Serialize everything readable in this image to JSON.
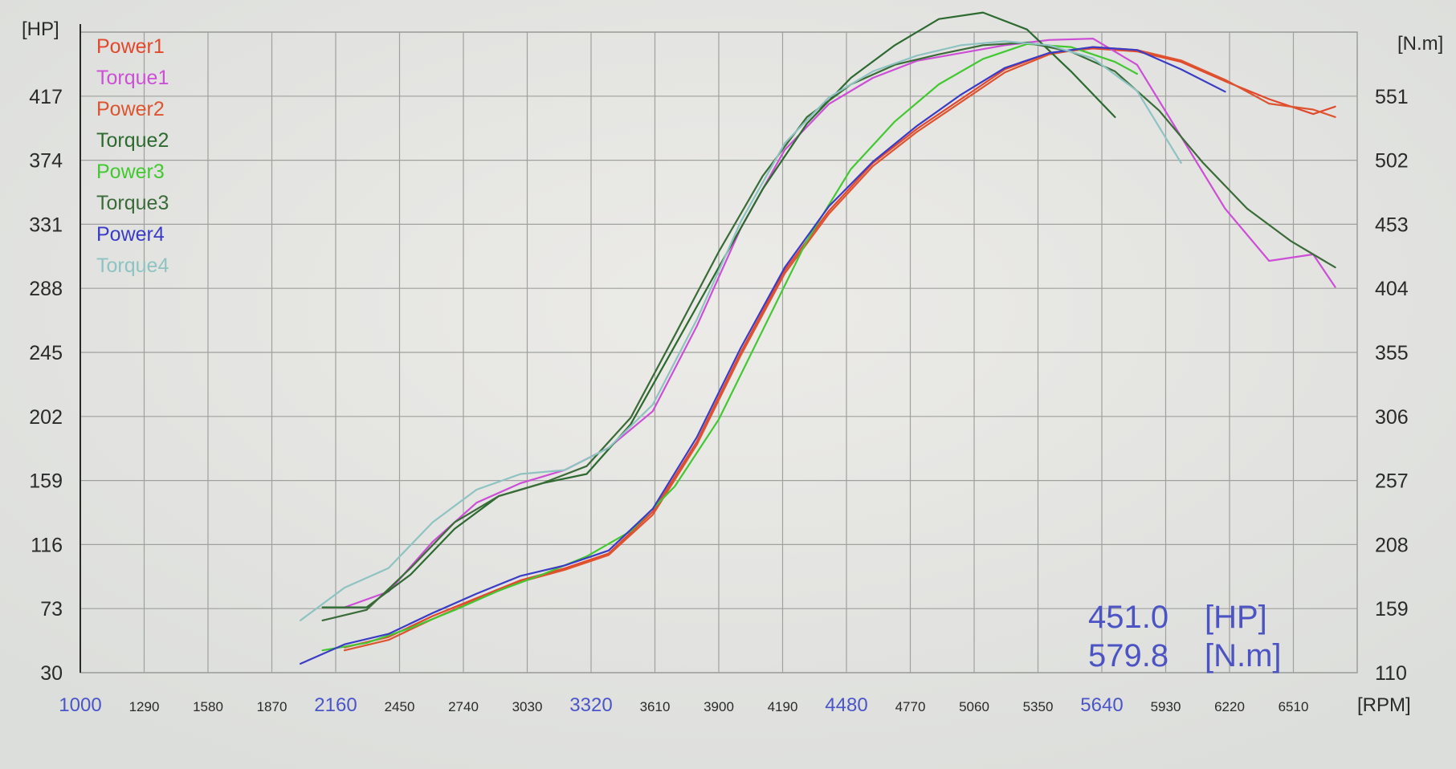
{
  "chart_data": {
    "type": "line",
    "left_axis": {
      "unit": "[HP]",
      "ticks": [
        30,
        73,
        116,
        159,
        202,
        245,
        288,
        331,
        374,
        417
      ],
      "range": [
        30,
        460
      ]
    },
    "right_axis": {
      "unit": "[N.m]",
      "ticks": [
        110,
        159,
        208,
        257,
        306,
        355,
        404,
        453,
        502,
        551
      ],
      "range": [
        110,
        600
      ]
    },
    "x_axis": {
      "unit": "[RPM]",
      "ticks": [
        "1000",
        "1290",
        "1580",
        "1870",
        "2160",
        "2450",
        "2740",
        "3030",
        "3320",
        "3610",
        "3900",
        "4190",
        "4480",
        "4770",
        "5060",
        "5350",
        "5640",
        "5930",
        "6220",
        "6510"
      ],
      "highlighted_ticks": [
        "1000",
        "2160",
        "3320",
        "4480",
        "5640"
      ],
      "range": [
        1000,
        6800
      ]
    },
    "grid": true,
    "legend_position": "top-left",
    "readout": {
      "power": "451.0",
      "power_unit": "[HP]",
      "torque": "579.8",
      "torque_unit": "[N.m]"
    },
    "series": [
      {
        "name": "Power1",
        "axis": "HP",
        "color": "#e2482c",
        "x": [
          2200,
          2400,
          2600,
          2800,
          3000,
          3200,
          3400,
          3600,
          3800,
          4000,
          4200,
          4400,
          4600,
          4800,
          5000,
          5200,
          5400,
          5600,
          5800,
          6000,
          6200,
          6400,
          6600,
          6700
        ],
        "y": [
          47,
          54,
          68,
          80,
          92,
          100,
          110,
          138,
          185,
          245,
          300,
          340,
          372,
          395,
          415,
          435,
          446,
          449,
          447,
          440,
          427,
          415,
          405,
          410
        ]
      },
      {
        "name": "Torque1",
        "axis": "N.m",
        "color": "#cc4fd6",
        "x": [
          2200,
          2400,
          2600,
          2800,
          3000,
          3200,
          3400,
          3600,
          3800,
          4000,
          4200,
          4400,
          4600,
          4800,
          5000,
          5200,
          5400,
          5600,
          5800,
          6000,
          6200,
          6400,
          6600,
          6700
        ],
        "y": [
          160,
          172,
          210,
          240,
          255,
          265,
          282,
          310,
          375,
          450,
          510,
          545,
          565,
          578,
          584,
          590,
          594,
          595,
          575,
          520,
          465,
          425,
          430,
          405
        ]
      },
      {
        "name": "Power2",
        "axis": "HP",
        "color": "#dd5530",
        "x": [
          2200,
          2400,
          2600,
          2800,
          3000,
          3200,
          3400,
          3600,
          3800,
          4000,
          4200,
          4400,
          4600,
          4800,
          5000,
          5200,
          5400,
          5600,
          5800,
          6000,
          6200,
          6400,
          6600,
          6700
        ],
        "y": [
          45,
          52,
          66,
          79,
          91,
          99,
          109,
          136,
          183,
          243,
          298,
          338,
          370,
          393,
          413,
          433,
          445,
          450,
          448,
          441,
          428,
          412,
          408,
          403
        ]
      },
      {
        "name": "Torque2",
        "axis": "N.m",
        "color": "#2c6a30",
        "x": [
          2100,
          2300,
          2500,
          2700,
          2900,
          3100,
          3300,
          3500,
          3700,
          3900,
          4100,
          4300,
          4500,
          4700,
          4900,
          5100,
          5300,
          5500,
          5700
        ],
        "y": [
          160,
          160,
          185,
          220,
          245,
          255,
          262,
          300,
          360,
          420,
          480,
          530,
          565,
          590,
          610,
          615,
          602,
          570,
          535
        ]
      },
      {
        "name": "Power3",
        "axis": "HP",
        "color": "#43c832",
        "x": [
          2100,
          2300,
          2500,
          2700,
          2900,
          3100,
          3300,
          3500,
          3700,
          3900,
          4100,
          4300,
          4500,
          4700,
          4900,
          5100,
          5300,
          5500,
          5700,
          5800
        ],
        "y": [
          45,
          50,
          60,
          72,
          85,
          96,
          108,
          125,
          155,
          200,
          260,
          320,
          368,
          400,
          425,
          442,
          452,
          450,
          440,
          432
        ]
      },
      {
        "name": "Torque3",
        "axis": "N.m",
        "color": "#3a6b38",
        "x": [
          2100,
          2300,
          2500,
          2700,
          2900,
          3100,
          3300,
          3500,
          3700,
          3900,
          4100,
          4300,
          4500,
          4700,
          4900,
          5100,
          5300,
          5500,
          5700,
          5900,
          6100,
          6300,
          6500,
          6700
        ],
        "y": [
          150,
          158,
          190,
          225,
          245,
          255,
          268,
          305,
          368,
          432,
          490,
          535,
          560,
          575,
          583,
          590,
          592,
          585,
          570,
          540,
          500,
          465,
          440,
          420
        ]
      },
      {
        "name": "Power4",
        "axis": "HP",
        "color": "#3a3cc6",
        "x": [
          2000,
          2200,
          2400,
          2600,
          2800,
          3000,
          3200,
          3400,
          3600,
          3800,
          4000,
          4200,
          4400,
          4600,
          4800,
          5000,
          5200,
          5400,
          5600,
          5800,
          6000,
          6200
        ],
        "y": [
          36,
          49,
          56,
          70,
          83,
          95,
          102,
          112,
          140,
          188,
          248,
          302,
          343,
          373,
          397,
          418,
          436,
          446,
          450,
          448,
          435,
          420
        ]
      },
      {
        "name": "Torque4",
        "axis": "N.m",
        "color": "#8ec3c2",
        "x": [
          2000,
          2200,
          2400,
          2600,
          2800,
          3000,
          3200,
          3400,
          3600,
          3800,
          4000,
          4200,
          4400,
          4600,
          4800,
          5000,
          5200,
          5400,
          5600,
          5800,
          6000
        ],
        "y": [
          150,
          175,
          190,
          225,
          250,
          262,
          265,
          282,
          315,
          380,
          455,
          515,
          550,
          570,
          582,
          590,
          593,
          590,
          580,
          555,
          500
        ]
      }
    ]
  }
}
